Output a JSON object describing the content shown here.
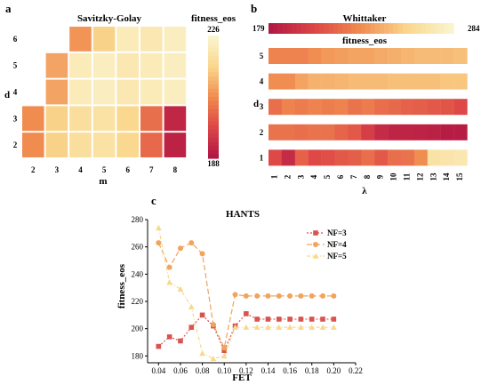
{
  "chart_data": [
    {
      "panel": "a",
      "type": "heatmap",
      "title": "Savitzky-Golay",
      "xlabel": "m",
      "ylabel": "d",
      "x": [
        2,
        3,
        4,
        5,
        6,
        7,
        8
      ],
      "y": [
        2,
        3,
        4,
        5,
        6
      ],
      "colorbar": {
        "label": "fitness_eos",
        "min": 188,
        "max": 226,
        "min_label": "188",
        "max_label": "226"
      },
      "values": [
        [
          207,
          216,
          219,
          220,
          217,
          202,
          190
        ],
        [
          207,
          216,
          219,
          220,
          217,
          203,
          191
        ],
        [
          null,
          210,
          223,
          224,
          222,
          223,
          224
        ],
        [
          null,
          210,
          223,
          224,
          222,
          223,
          224
        ],
        [
          null,
          null,
          208,
          216,
          223,
          222,
          224
        ]
      ]
    },
    {
      "panel": "b",
      "type": "heatmap",
      "title": "Whittaker",
      "xlabel": "λ",
      "ylabel": "d",
      "x": [
        1,
        2,
        3,
        4,
        5,
        6,
        7,
        8,
        9,
        10,
        11,
        12,
        13,
        14,
        15
      ],
      "y": [
        1,
        2,
        3,
        4,
        5
      ],
      "colorbar": {
        "label": "fitness_eos",
        "min": 179,
        "max": 284,
        "min_label": "179",
        "max_label": "284"
      },
      "values": [
        [
          205,
          190,
          215,
          205,
          208,
          212,
          214,
          220,
          212,
          220,
          222,
          232,
          268,
          270,
          272
        ],
        [
          222,
          222,
          220,
          222,
          222,
          216,
          212,
          200,
          190,
          186,
          186,
          185,
          184,
          182,
          182
        ],
        [
          220,
          228,
          225,
          228,
          226,
          228,
          222,
          225,
          220,
          218,
          215,
          214,
          212,
          210,
          205
        ],
        [
          232,
          232,
          240,
          245,
          245,
          246,
          248,
          248,
          248,
          250,
          250,
          250,
          250,
          252,
          252
        ],
        [
          228,
          228,
          228,
          232,
          236,
          238,
          240,
          240,
          242,
          244,
          246,
          248,
          248,
          248,
          250
        ]
      ]
    },
    {
      "panel": "c",
      "type": "line",
      "title": "HANTS",
      "xlabel": "FET",
      "ylabel": "fitness_eos",
      "xlim": [
        0.03,
        0.22
      ],
      "ylim": [
        175,
        280
      ],
      "xticks": [
        "0.04",
        "0.06",
        "0.08",
        "0.10",
        "0.12",
        "0.14",
        "0.16",
        "0.18",
        "0.20",
        "0.22"
      ],
      "yticks": [
        "180",
        "200",
        "220",
        "240",
        "260",
        "280"
      ],
      "x": [
        0.04,
        0.05,
        0.06,
        0.07,
        0.08,
        0.09,
        0.1,
        0.11,
        0.12,
        0.13,
        0.14,
        0.15,
        0.16,
        0.17,
        0.18,
        0.19,
        0.2
      ],
      "legend": "top-right",
      "series": [
        {
          "name": "NF=3",
          "color": "#d9534f",
          "marker": "square",
          "values": [
            187,
            194,
            191,
            201,
            210,
            202,
            184,
            202,
            211,
            207,
            207,
            207,
            207,
            207,
            207,
            207,
            207
          ]
        },
        {
          "name": "NF=4",
          "color": "#f0a45c",
          "marker": "circle",
          "values": [
            263,
            245,
            259,
            263,
            255,
            203,
            186,
            225,
            224,
            224,
            224,
            224,
            224,
            224,
            224,
            224,
            224
          ]
        },
        {
          "name": "NF=5",
          "color": "#f7d98e",
          "marker": "triangle",
          "values": [
            274,
            234,
            229,
            216,
            182,
            178,
            180,
            201,
            201,
            201,
            201,
            201,
            201,
            201,
            201,
            201,
            201
          ]
        }
      ]
    }
  ],
  "panel_letters": {
    "a": "a",
    "b": "b",
    "c": "c"
  }
}
